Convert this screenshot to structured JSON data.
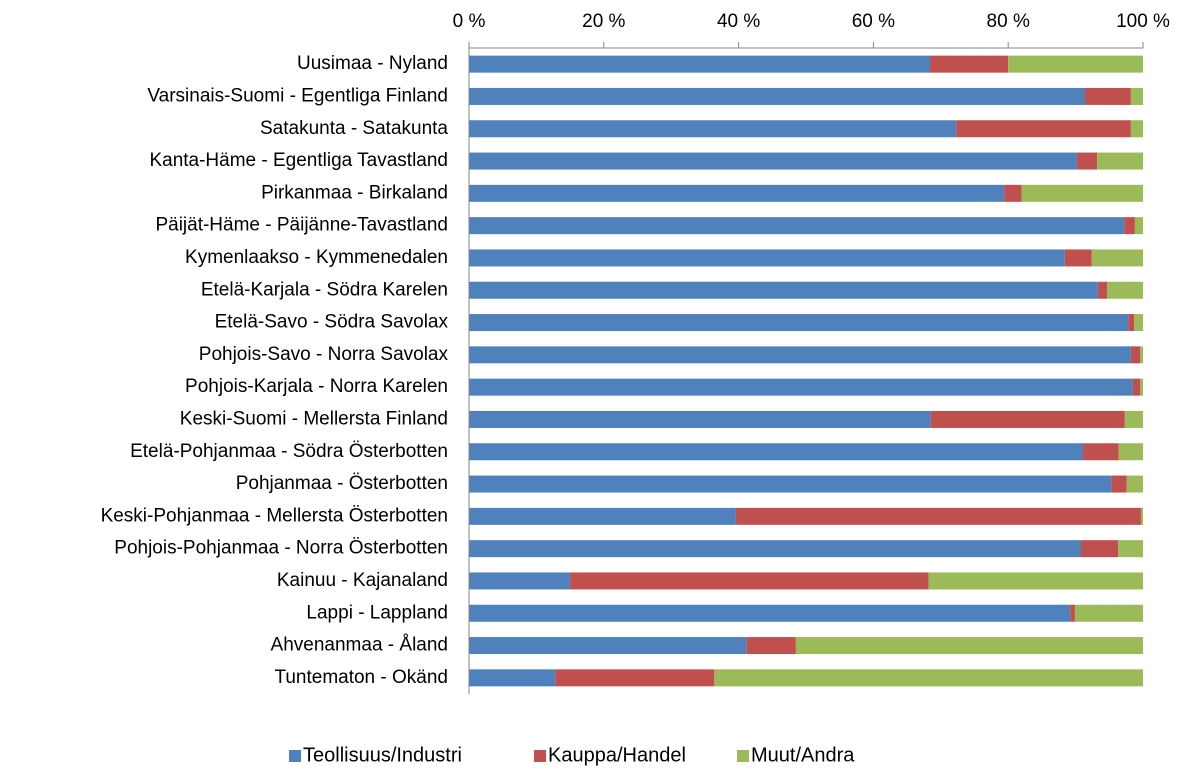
{
  "chart_data": {
    "type": "stacked_barh",
    "categories": [
      "Uusimaa - Nyland",
      "Varsinais-Suomi - Egentliga Finland",
      "Satakunta - Satakunta",
      "Kanta-Häme - Egentliga Tavastland",
      "Pirkanmaa - Birkaland",
      "Päijät-Häme - Päijänne-Tavastland",
      "Kymenlaakso - Kymmenedalen",
      "Etelä-Karjala - Södra Karelen",
      "Etelä-Savo - Södra Savolax",
      "Pohjois-Savo - Norra Savolax",
      "Pohjois-Karjala - Norra Karelen",
      "Keski-Suomi - Mellersta Finland",
      "Etelä-Pohjanmaa - Södra Österbotten",
      "Pohjanmaa - Österbotten",
      "Keski-Pohjanmaa - Mellersta Österbotten",
      "Pohjois-Pohjanmaa - Norra Österbotten",
      "Kainuu - Kajanaland",
      "Lappi - Lappland",
      "Ahvenanmaa - Åland",
      "Tuntematon - Okänd"
    ],
    "series": [
      {
        "name": "Teollisuus/Industri",
        "color": "#4f81bd",
        "values": [
          68.4,
          91.4,
          72.3,
          90.2,
          79.4,
          97.2,
          88.4,
          93.3,
          97.8,
          98.2,
          98.5,
          68.5,
          91.1,
          95.3,
          39.6,
          90.8,
          15.0,
          89.2,
          41.2,
          12.8
        ]
      },
      {
        "name": "Kauppa/Handel",
        "color": "#c0504d",
        "values": [
          11.6,
          6.8,
          25.9,
          3.0,
          2.6,
          1.6,
          4.0,
          1.4,
          0.9,
          1.4,
          1.1,
          28.8,
          5.3,
          2.3,
          60.1,
          5.5,
          53.2,
          0.7,
          7.3,
          23.6
        ]
      },
      {
        "name": "Muut/Andra",
        "color": "#9bbb59",
        "values": [
          20.0,
          1.8,
          1.8,
          6.8,
          18.0,
          1.2,
          7.6,
          5.3,
          1.3,
          0.4,
          0.4,
          2.7,
          3.6,
          2.4,
          0.3,
          3.7,
          31.8,
          10.1,
          51.5,
          63.6
        ]
      }
    ],
    "xlim": [
      0,
      100
    ],
    "xticks": [
      {
        "value": 0,
        "label": "0 %"
      },
      {
        "value": 20,
        "label": "20 %"
      },
      {
        "value": 40,
        "label": "40 %"
      },
      {
        "value": 60,
        "label": "60 %"
      },
      {
        "value": 80,
        "label": "80 %"
      },
      {
        "value": 100,
        "label": "100 %"
      }
    ],
    "legend": "bottom"
  }
}
